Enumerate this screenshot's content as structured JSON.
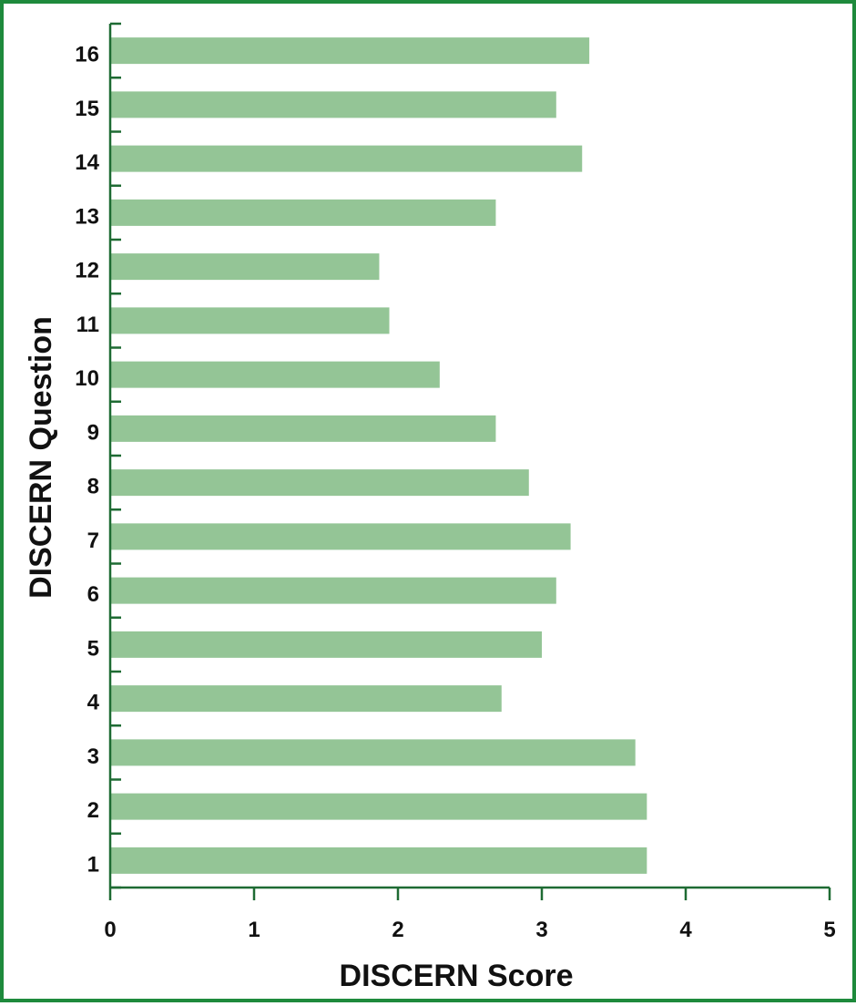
{
  "chart_data": {
    "type": "bar",
    "orientation": "horizontal",
    "categories": [
      "1",
      "2",
      "3",
      "4",
      "5",
      "6",
      "7",
      "8",
      "9",
      "10",
      "11",
      "12",
      "13",
      "14",
      "15",
      "16"
    ],
    "values": [
      3.73,
      3.73,
      3.65,
      2.72,
      3.0,
      3.1,
      3.2,
      2.91,
      2.68,
      2.29,
      1.94,
      1.87,
      2.68,
      3.28,
      3.1,
      3.33
    ],
    "title": "",
    "xlabel": "DISCERN Score",
    "ylabel": "DISCERN Question",
    "xlim": [
      0,
      5
    ],
    "x_ticks": [
      "0",
      "1",
      "2",
      "3",
      "4",
      "5"
    ],
    "grid": false,
    "bar_color": "#94c596",
    "axis_color": "#1e6b33",
    "border_color": "#1e8a3c"
  }
}
